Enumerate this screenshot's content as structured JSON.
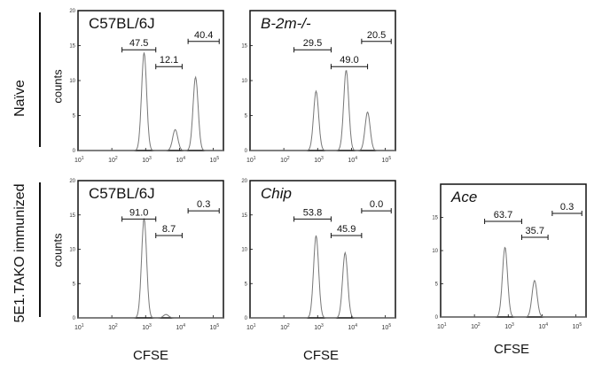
{
  "row_labels": {
    "naive": "Naïve",
    "immunized": "5E1.TAKO immunized"
  },
  "counts_label": "counts",
  "xlabel": "CFSE",
  "chart_data": [
    {
      "type": "line",
      "panel": "naive-c57bl6j",
      "title": "C57BL/6J",
      "title_italic": false,
      "xscale": "log",
      "xlim": [
        10,
        200000
      ],
      "ylim": [
        0,
        20
      ],
      "yticks": [
        0,
        5,
        10,
        15,
        20
      ],
      "xticks": [
        "10^1",
        "10^2",
        "10^3",
        "10^4",
        "10^5"
      ],
      "peaks": [
        {
          "x": 900,
          "y": 14
        },
        {
          "x": 7500,
          "y": 3
        },
        {
          "x": 30000,
          "y": 10.5
        }
      ],
      "gates": [
        {
          "label": "47.5",
          "x0": 200,
          "x1": 2000
        },
        {
          "label": "12.1",
          "x0": 2000,
          "x1": 12000
        },
        {
          "label": "40.4",
          "x0": 18000,
          "x1": 150000
        }
      ]
    },
    {
      "type": "line",
      "panel": "naive-b2m",
      "title": "B-2m-/-",
      "title_italic": true,
      "xscale": "log",
      "xlim": [
        10,
        200000
      ],
      "ylim": [
        0,
        20
      ],
      "yticks": [
        0,
        5,
        10,
        15
      ],
      "xticks": [
        "10^1",
        "10^2",
        "10^3",
        "10^4",
        "10^5"
      ],
      "peaks": [
        {
          "x": 900,
          "y": 8.5
        },
        {
          "x": 7000,
          "y": 11.5
        },
        {
          "x": 30000,
          "y": 5.5
        }
      ],
      "gates": [
        {
          "label": "29.5",
          "x0": 200,
          "x1": 2500
        },
        {
          "label": "49.0",
          "x0": 2500,
          "x1": 30000
        },
        {
          "label": "20.5",
          "x0": 20000,
          "x1": 150000
        }
      ]
    },
    {
      "type": "line",
      "panel": "immunized-c57bl6j",
      "title": "C57BL/6J",
      "title_italic": false,
      "xscale": "log",
      "xlim": [
        10,
        200000
      ],
      "ylim": [
        0,
        20
      ],
      "yticks": [
        0,
        5,
        10,
        15,
        20
      ],
      "xticks": [
        "10^1",
        "10^2",
        "10^3",
        "10^4",
        "10^5"
      ],
      "peaks": [
        {
          "x": 900,
          "y": 14.5
        },
        {
          "x": 4000,
          "y": 0.5
        }
      ],
      "gates": [
        {
          "label": "91.0",
          "x0": 200,
          "x1": 2000
        },
        {
          "label": "8.7",
          "x0": 2000,
          "x1": 12000
        },
        {
          "label": "0.3",
          "x0": 18000,
          "x1": 150000
        }
      ]
    },
    {
      "type": "line",
      "panel": "immunized-chip",
      "title": "Chip",
      "title_italic": true,
      "xscale": "log",
      "xlim": [
        10,
        200000
      ],
      "ylim": [
        0,
        20
      ],
      "yticks": [
        0,
        5,
        10,
        15,
        20
      ],
      "xticks": [
        "10^1",
        "10^2",
        "10^3",
        "10^4",
        "10^5"
      ],
      "peaks": [
        {
          "x": 900,
          "y": 12
        },
        {
          "x": 6500,
          "y": 9.5
        }
      ],
      "gates": [
        {
          "label": "53.8",
          "x0": 200,
          "x1": 2500
        },
        {
          "label": "45.9",
          "x0": 2500,
          "x1": 20000
        },
        {
          "label": "0.0",
          "x0": 20000,
          "x1": 150000
        }
      ]
    },
    {
      "type": "line",
      "panel": "immunized-ace",
      "title": "Ace",
      "title_italic": true,
      "xscale": "log",
      "xlim": [
        10,
        200000
      ],
      "ylim": [
        0,
        20
      ],
      "yticks": [
        0,
        5,
        10,
        15
      ],
      "xticks": [
        "10^1",
        "10^2",
        "10^3",
        "10^4",
        "10^5"
      ],
      "peaks": [
        {
          "x": 800,
          "y": 10.5
        },
        {
          "x": 6000,
          "y": 5.5
        }
      ],
      "gates": [
        {
          "label": "63.7",
          "x0": 200,
          "x1": 2500
        },
        {
          "label": "35.7",
          "x0": 2500,
          "x1": 15000
        },
        {
          "label": "0.3",
          "x0": 20000,
          "x1": 150000
        }
      ]
    }
  ]
}
